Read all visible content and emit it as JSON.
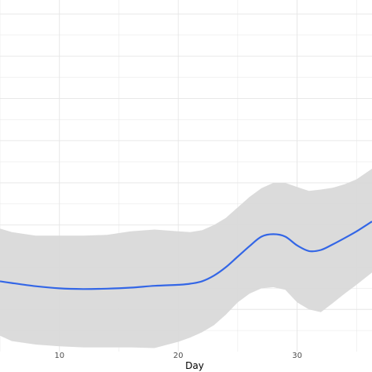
{
  "chart_data": {
    "type": "line",
    "title": "",
    "xlabel": "Day",
    "ylabel": "",
    "xlim": [
      5,
      36.3
    ],
    "ylim": [
      0,
      1
    ],
    "x_ticks": [
      10,
      20,
      30
    ],
    "x_tick_labels": [
      "10",
      "20",
      "30"
    ],
    "grid": true,
    "legend": "none",
    "series": [
      {
        "type": "line",
        "color": "#3366e6",
        "x": [
          5,
          6,
          8,
          10,
          12,
          14,
          16,
          18,
          20,
          21,
          22,
          23,
          24,
          25,
          26,
          27,
          28,
          29,
          30,
          31,
          32,
          33,
          34,
          35,
          36.3
        ],
        "y": [
          0.2,
          0.195,
          0.186,
          0.18,
          0.178,
          0.179,
          0.182,
          0.187,
          0.19,
          0.193,
          0.2,
          0.216,
          0.24,
          0.27,
          0.3,
          0.327,
          0.334,
          0.327,
          0.302,
          0.286,
          0.289,
          0.305,
          0.323,
          0.342,
          0.37
        ]
      }
    ],
    "confidence_band": {
      "color": "#d9d9d9",
      "x": [
        5,
        6,
        8,
        10,
        12,
        14,
        16,
        18,
        20,
        21,
        22,
        23,
        24,
        25,
        26,
        27,
        28,
        29,
        30,
        31,
        32,
        33,
        34,
        35,
        36.3
      ],
      "upper": [
        0.35,
        0.34,
        0.33,
        0.33,
        0.33,
        0.332,
        0.342,
        0.347,
        0.342,
        0.34,
        0.345,
        0.36,
        0.38,
        0.41,
        0.44,
        0.465,
        0.48,
        0.48,
        0.468,
        0.457,
        0.461,
        0.466,
        0.476,
        0.49,
        0.52
      ],
      "lower": [
        0.045,
        0.03,
        0.02,
        0.015,
        0.012,
        0.012,
        0.012,
        0.01,
        0.028,
        0.04,
        0.055,
        0.075,
        0.105,
        0.14,
        0.165,
        0.18,
        0.183,
        0.176,
        0.14,
        0.12,
        0.112,
        0.138,
        0.165,
        0.19,
        0.225
      ]
    }
  }
}
